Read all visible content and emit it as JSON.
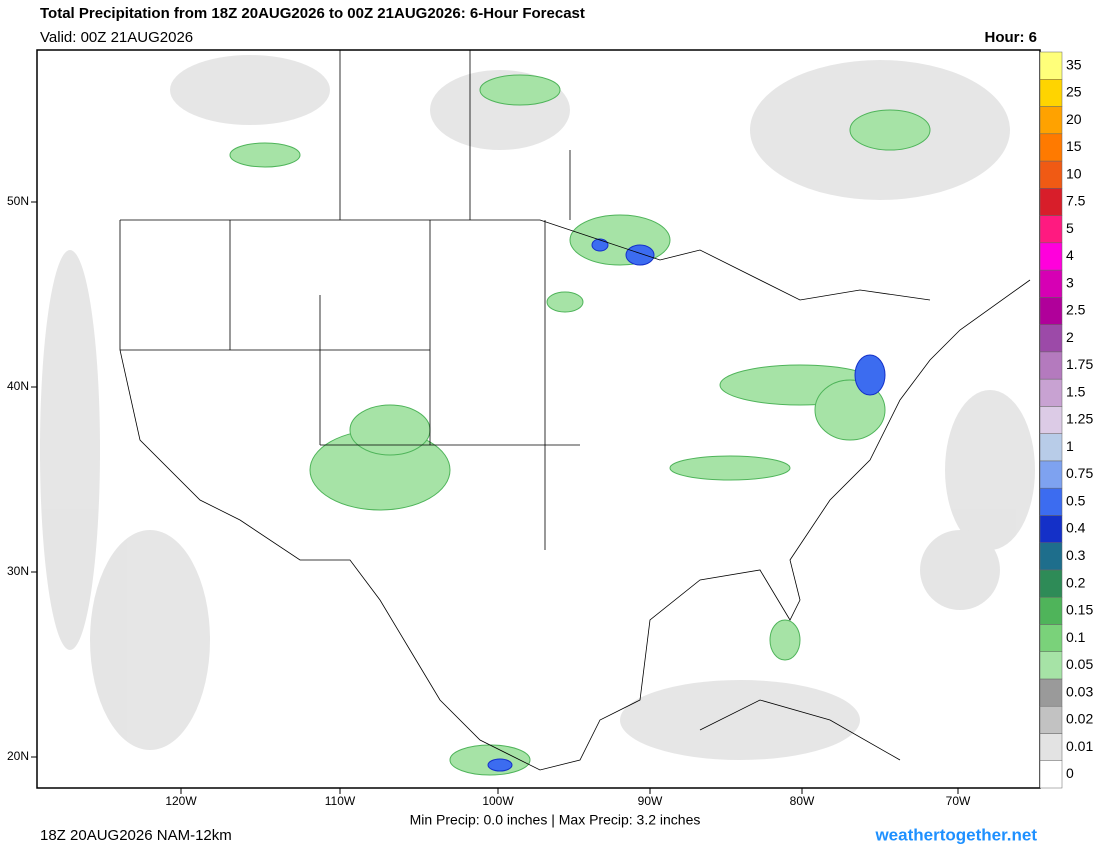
{
  "header": {
    "title": "Total Precipitation from 18Z 20AUG2026 to 00Z 21AUG2026: 6-Hour Forecast",
    "valid": "Valid: 00Z 21AUG2026",
    "hour": "Hour: 6"
  },
  "map": {
    "lon_labels": [
      "120W",
      "110W",
      "100W",
      "90W",
      "80W",
      "70W"
    ],
    "lat_labels": [
      "50N",
      "40N",
      "30N",
      "20N"
    ]
  },
  "colorbar": {
    "levels": [
      {
        "label": "0",
        "color": "#ffffff"
      },
      {
        "label": "0.01",
        "color": "#e3e3e3"
      },
      {
        "label": "0.02",
        "color": "#c2c2c2"
      },
      {
        "label": "0.03",
        "color": "#9a9a9a"
      },
      {
        "label": "0.05",
        "color": "#a6e3a6"
      },
      {
        "label": "0.1",
        "color": "#7ad27a"
      },
      {
        "label": "0.15",
        "color": "#4fb45a"
      },
      {
        "label": "0.2",
        "color": "#2e8b57"
      },
      {
        "label": "0.3",
        "color": "#1e6e8c"
      },
      {
        "label": "0.4",
        "color": "#1430c8"
      },
      {
        "label": "0.5",
        "color": "#3c6cf0"
      },
      {
        "label": "0.75",
        "color": "#7ea2f0"
      },
      {
        "label": "1",
        "color": "#b8cce8"
      },
      {
        "label": "1.25",
        "color": "#dccbe6"
      },
      {
        "label": "1.5",
        "color": "#c8a2d2"
      },
      {
        "label": "1.75",
        "color": "#b47abe"
      },
      {
        "label": "2",
        "color": "#9c4aa8"
      },
      {
        "label": "2.5",
        "color": "#b0009a"
      },
      {
        "label": "3",
        "color": "#d600b4"
      },
      {
        "label": "4",
        "color": "#ff00dc"
      },
      {
        "label": "5",
        "color": "#ff1a80"
      },
      {
        "label": "7.5",
        "color": "#d81e2a"
      },
      {
        "label": "10",
        "color": "#f05a14"
      },
      {
        "label": "15",
        "color": "#ff7a00"
      },
      {
        "label": "20",
        "color": "#ffa200"
      },
      {
        "label": "25",
        "color": "#ffd400"
      },
      {
        "label": "35",
        "color": "#ffff7a"
      }
    ]
  },
  "footer": {
    "run": "18Z 20AUG2026 NAM-12km",
    "stats": "Min Precip:   0.0 inches | Max Precip:   3.2 inches",
    "site": "weathertogether.net"
  }
}
